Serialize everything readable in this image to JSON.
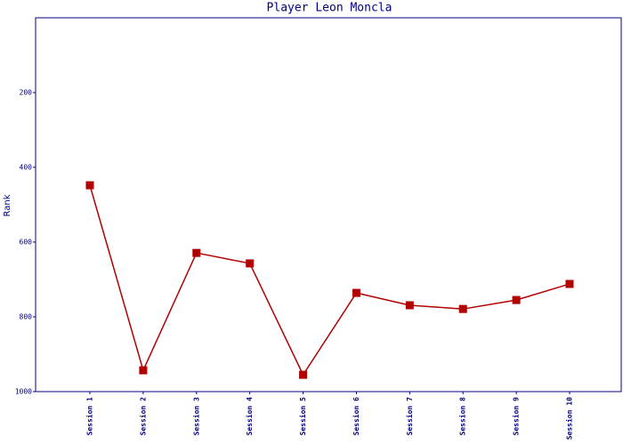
{
  "chart_data": {
    "type": "line",
    "title": "Player Leon Moncla",
    "y_label": "Rank",
    "categories": [
      "Session 1",
      "Session 2",
      "Session 3",
      "Session 4",
      "Session 5",
      "Session 6",
      "Session 7",
      "Session 8",
      "Session 9",
      "Session 10"
    ],
    "series": [
      {
        "name": "Rank",
        "color": "#b00000",
        "values": [
          448,
          943,
          629,
          657,
          955,
          736,
          769,
          779,
          755,
          712
        ]
      }
    ],
    "ylim": [
      0,
      1000
    ],
    "yticks": [
      200,
      400,
      600,
      800,
      1000
    ],
    "inverted": true
  }
}
